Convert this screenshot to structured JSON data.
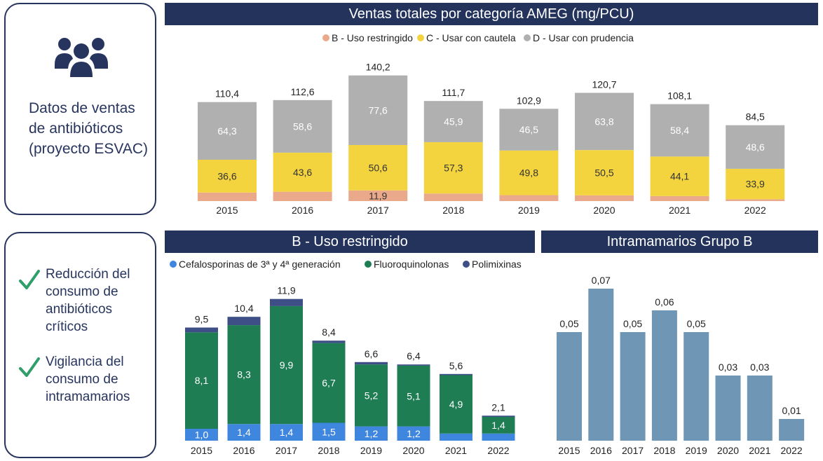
{
  "info_card": {
    "icon": "users-group-icon",
    "text": "Datos de ventas de antibióticos (proyecto ESVAC)"
  },
  "goals": [
    {
      "icon": "check-icon",
      "text": "Reducción del consumo de antibióticos críticos"
    },
    {
      "icon": "check-icon",
      "text": "Vigilancia del consumo de intramamarios"
    }
  ],
  "colors": {
    "navy": "#23335c",
    "B": "#e9a98a",
    "C": "#f3d43f",
    "D": "#b0b0b0",
    "cefalosporinas": "#3f86df",
    "fluoroquinolonas": "#1f7d53",
    "polimixinas": "#3e4e86",
    "intramamarios": "#6f97b5",
    "check": "#2e9e6b"
  },
  "chart_data": [
    {
      "type": "bar",
      "stacked": true,
      "title": "Ventas totales por categoría AMEG (mg/PCU)",
      "legend_position": "top",
      "categories": [
        "2015",
        "2016",
        "2017",
        "2018",
        "2019",
        "2020",
        "2021",
        "2022"
      ],
      "totals": [
        "110,4",
        "112,6",
        "140,2",
        "111,7",
        "102,9",
        "120,7",
        "108,1",
        "84,5"
      ],
      "series": [
        {
          "name": "B - Uso restringido",
          "values": [
            9.5,
            10.4,
            11.9,
            8.4,
            6.6,
            6.4,
            5.6,
            2.1
          ],
          "labels": [
            "",
            "",
            "11,9",
            "",
            "",
            "",
            "",
            ""
          ]
        },
        {
          "name": "C - Usar con cautela",
          "values": [
            36.6,
            43.6,
            50.6,
            57.3,
            49.8,
            50.5,
            44.1,
            33.9
          ],
          "labels": [
            "36,6",
            "43,6",
            "50,6",
            "57,3",
            "49,8",
            "50,5",
            "44,1",
            "33,9"
          ]
        },
        {
          "name": "D - Usar con prudencia",
          "values": [
            64.3,
            58.6,
            77.6,
            45.9,
            46.5,
            63.8,
            58.4,
            48.6
          ],
          "labels": [
            "64,3",
            "58,6",
            "77,6",
            "45,9",
            "46,5",
            "63,8",
            "58,4",
            "48,6"
          ]
        }
      ]
    },
    {
      "type": "bar",
      "stacked": true,
      "title": "B - Uso restringido",
      "legend_position": "top",
      "categories": [
        "2015",
        "2016",
        "2017",
        "2018",
        "2019",
        "2020",
        "2021",
        "2022"
      ],
      "totals": [
        "9,5",
        "10,4",
        "11,9",
        "8,4",
        "6,6",
        "6,4",
        "5,6",
        "2,1"
      ],
      "series": [
        {
          "name": "Cefalosporinas de 3ª y 4ª generación",
          "values": [
            1.0,
            1.4,
            1.4,
            1.5,
            1.2,
            1.2,
            0.6,
            0.6
          ],
          "labels": [
            "1,0",
            "1,4",
            "1,4",
            "1,5",
            "1,2",
            "1,2",
            "",
            ""
          ]
        },
        {
          "name": "Fluoroquinolonas",
          "values": [
            8.1,
            8.3,
            9.9,
            6.7,
            5.2,
            5.1,
            4.9,
            1.4
          ],
          "labels": [
            "8,1",
            "8,3",
            "9,9",
            "6,7",
            "5,2",
            "5,1",
            "4,9",
            "1,4"
          ]
        },
        {
          "name": "Polimixinas",
          "values": [
            0.4,
            0.7,
            0.6,
            0.2,
            0.2,
            0.1,
            0.1,
            0.1
          ],
          "labels": [
            "",
            "",
            "",
            "",
            "",
            "",
            "",
            ""
          ]
        }
      ]
    },
    {
      "type": "bar",
      "title": "Intramamarios Grupo B",
      "categories": [
        "2015",
        "2016",
        "2017",
        "2018",
        "2019",
        "2020",
        "2021",
        "2022"
      ],
      "values": [
        0.05,
        0.07,
        0.05,
        0.06,
        0.05,
        0.03,
        0.03,
        0.01
      ],
      "labels": [
        "0,05",
        "0,07",
        "0,05",
        "0,06",
        "0,05",
        "0,03",
        "0,03",
        "0,01"
      ]
    }
  ]
}
